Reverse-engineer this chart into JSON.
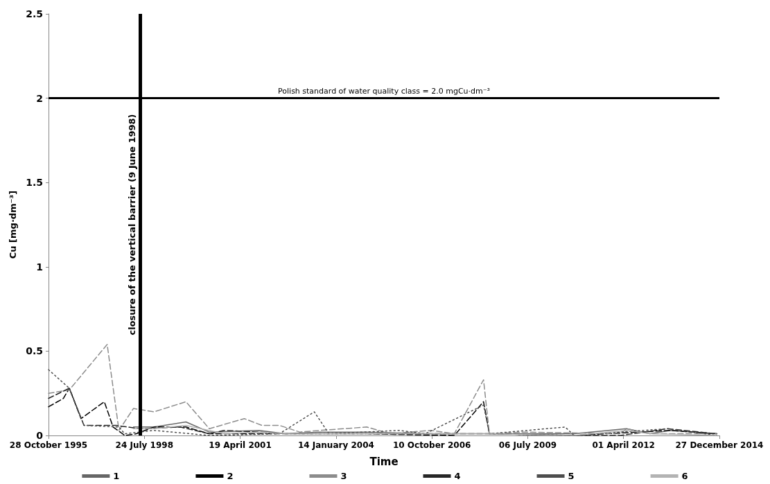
{
  "chart_data": {
    "type": "line",
    "xlabel": "Time",
    "ylabel": "Cu [mg·dm⁻³]",
    "xlim": [
      "1995-10-28",
      "2014-12-27"
    ],
    "xticks": [
      {
        "value": "1995-10-28",
        "label": "28 October 1995"
      },
      {
        "value": "1998-07-24",
        "label": "24 July 1998"
      },
      {
        "value": "2001-04-19",
        "label": "19 April 2001"
      },
      {
        "value": "2004-01-14",
        "label": "14 January 2004"
      },
      {
        "value": "2006-10-10",
        "label": "10 October 2006"
      },
      {
        "value": "2009-07-06",
        "label": "06 July 2009"
      },
      {
        "value": "2012-04-01",
        "label": "01 April 2012"
      },
      {
        "value": "2014-12-27",
        "label": "27 December 2014"
      }
    ],
    "ylim": [
      0,
      2.5
    ],
    "yticks": [
      0,
      0.5,
      1,
      1.5,
      2,
      2.5
    ],
    "grid": false,
    "legend": "bottom",
    "marker": "none",
    "ref_lines": [
      {
        "axis": "y",
        "value": 2,
        "label": "Polish standard of water quality class = 2.0 mgCu·dm⁻³",
        "color": "#000000",
        "line_style": "solid"
      },
      {
        "axis": "x",
        "value": "1998-06-09",
        "label": "closure of the vertical barrier (9 June 1998)",
        "color": "#000000",
        "line_style": "solid"
      }
    ],
    "series": [
      {
        "name": "1",
        "color": "#666666",
        "line_style": "solid",
        "x": [
          "1998-04",
          "1998-11",
          "1999-10",
          "2000-06",
          "2001-11",
          "2002-08",
          "2003-08",
          "2004-12",
          "2006-08",
          "2008-06",
          "2010-11",
          "2012-05",
          "2013-01",
          "2013-08",
          "2014-12"
        ],
        "values": [
          0.05,
          0.05,
          0.08,
          0.02,
          0.03,
          0.01,
          0.02,
          0.02,
          0.01,
          0.01,
          0.01,
          0.04,
          0.01,
          0.03,
          0.01
        ]
      },
      {
        "name": "2",
        "color": "#000000",
        "line_style": "dashed",
        "x": [
          "1995-10-28",
          "1996-04",
          "1996-06",
          "1996-10",
          "1997-06",
          "1997-09",
          "1998-01",
          "1998-05",
          "1998-11",
          "1999-10",
          "2000-06",
          "2002-06",
          "2004-12",
          "2007-06",
          "2008-04",
          "2008-06",
          "2010-11",
          "2013-08",
          "2014-12"
        ],
        "values": [
          0.17,
          0.22,
          0.28,
          0.1,
          0.2,
          0.05,
          0.0,
          0.01,
          0.05,
          0.05,
          0.01,
          0.01,
          0.01,
          0.0,
          0.2,
          0.01,
          0.0,
          0.03,
          0.01
        ]
      },
      {
        "name": "3",
        "color": "#8c8c8c",
        "line_style": "dashed",
        "x": [
          "1995-10-28",
          "1996-06",
          "1997-07",
          "1997-11",
          "1998-04",
          "1998-11",
          "1999-10",
          "2000-06",
          "2001-06",
          "2001-12",
          "2002-06",
          "2003-01",
          "2003-08",
          "2004-12",
          "2005-08",
          "2006-10",
          "2007-06",
          "2008-04",
          "2008-06",
          "2009-06",
          "2012-03",
          "2012-05",
          "2013-01",
          "2014-12"
        ],
        "values": [
          0.25,
          0.27,
          0.54,
          0.03,
          0.16,
          0.14,
          0.2,
          0.04,
          0.1,
          0.06,
          0.06,
          0.02,
          0.03,
          0.05,
          0.01,
          0.03,
          0.01,
          0.33,
          0.01,
          0.02,
          0.01,
          0.04,
          0.01,
          0.01
        ]
      },
      {
        "name": "4",
        "color": "#262626",
        "line_style": "dashed",
        "x": [
          "1995-10-28",
          "1996-06",
          "1996-11",
          "1997-10",
          "1998-06",
          "1999-08",
          "2000-06",
          "2000-11",
          "2001-11",
          "2002-08",
          "2004-12",
          "2008-06",
          "2010-11",
          "2012-03",
          "2013-07",
          "2014-12"
        ],
        "values": [
          0.22,
          0.28,
          0.06,
          0.06,
          0.04,
          0.05,
          0.01,
          0.03,
          0.02,
          0.01,
          0.01,
          0.01,
          0.0,
          0.0,
          0.04,
          0.01
        ]
      },
      {
        "name": "5",
        "color": "#4d4d4d",
        "line_style": "dotted",
        "x": [
          "1995-10-28",
          "1996-06",
          "1996-11",
          "1997-11",
          "1998-01",
          "1998-11",
          "2000-06",
          "2002-06",
          "2003-06",
          "2003-11",
          "2005-11",
          "2006-08",
          "2008-04",
          "2008-06",
          "2010-08",
          "2010-11",
          "2013-07",
          "2014-12"
        ],
        "values": [
          0.39,
          0.28,
          0.06,
          0.05,
          0.01,
          0.03,
          0.0,
          0.01,
          0.14,
          0.01,
          0.03,
          0.01,
          0.18,
          0.01,
          0.05,
          0.0,
          0.04,
          0.0
        ]
      },
      {
        "name": "6",
        "color": "#b3b3b3",
        "line_style": "solid",
        "x": [
          "1998-04",
          "1998-11",
          "1999-10",
          "2000-11",
          "2001-11",
          "2002-08",
          "2004-12",
          "2006-08",
          "2008-06",
          "2010-11",
          "2012-05",
          "2013-01",
          "2014-12"
        ],
        "values": [
          0.04,
          0.04,
          0.06,
          0.01,
          0.02,
          0.01,
          0.01,
          0.01,
          0.01,
          0.0,
          0.03,
          0.01,
          0.0
        ]
      }
    ]
  }
}
